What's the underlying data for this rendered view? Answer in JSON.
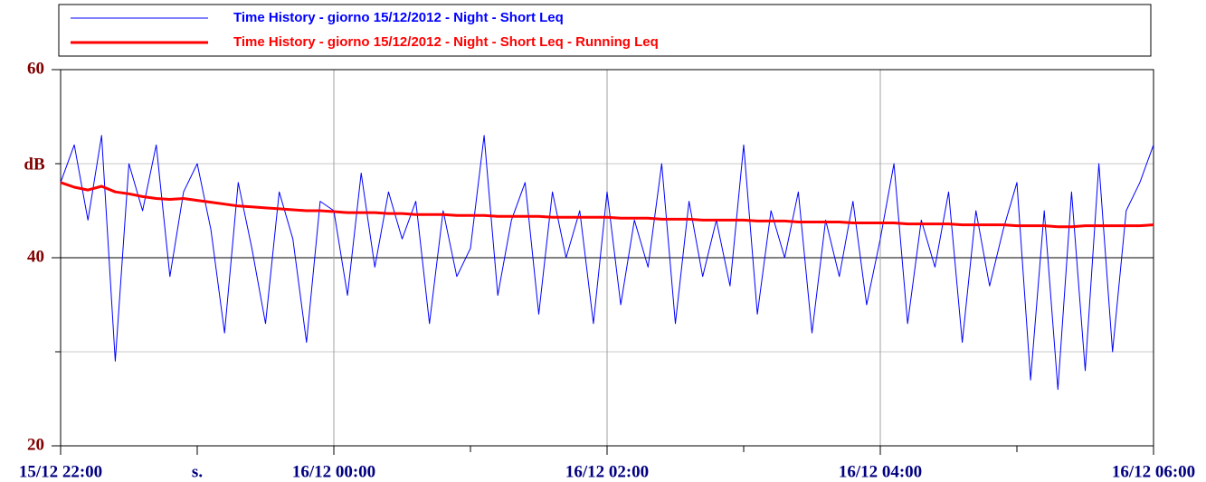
{
  "chart_data": {
    "type": "line",
    "x": [
      "15/12 22:00",
      "15/12 22:06",
      "15/12 22:12",
      "15/12 22:18",
      "15/12 22:24",
      "15/12 22:30",
      "15/12 22:36",
      "15/12 22:42",
      "15/12 22:48",
      "15/12 22:54",
      "15/12 23:00",
      "15/12 23:06",
      "15/12 23:12",
      "15/12 23:18",
      "15/12 23:24",
      "15/12 23:30",
      "15/12 23:36",
      "15/12 23:42",
      "15/12 23:48",
      "15/12 23:54",
      "16/12 00:00",
      "16/12 00:06",
      "16/12 00:12",
      "16/12 00:18",
      "16/12 00:24",
      "16/12 00:30",
      "16/12 00:36",
      "16/12 00:42",
      "16/12 00:48",
      "16/12 00:54",
      "16/12 01:00",
      "16/12 01:06",
      "16/12 01:12",
      "16/12 01:18",
      "16/12 01:24",
      "16/12 01:30",
      "16/12 01:36",
      "16/12 01:42",
      "16/12 01:48",
      "16/12 01:54",
      "16/12 02:00",
      "16/12 02:06",
      "16/12 02:12",
      "16/12 02:18",
      "16/12 02:24",
      "16/12 02:30",
      "16/12 02:36",
      "16/12 02:42",
      "16/12 02:48",
      "16/12 02:54",
      "16/12 03:00",
      "16/12 03:06",
      "16/12 03:12",
      "16/12 03:18",
      "16/12 03:24",
      "16/12 03:30",
      "16/12 03:36",
      "16/12 03:42",
      "16/12 03:48",
      "16/12 03:54",
      "16/12 04:00",
      "16/12 04:06",
      "16/12 04:12",
      "16/12 04:18",
      "16/12 04:24",
      "16/12 04:30",
      "16/12 04:36",
      "16/12 04:42",
      "16/12 04:48",
      "16/12 04:54",
      "16/12 05:00",
      "16/12 05:06",
      "16/12 05:12",
      "16/12 05:18",
      "16/12 05:24",
      "16/12 05:30",
      "16/12 05:36",
      "16/12 05:42",
      "16/12 05:48",
      "16/12 05:54",
      "16/12 06:00"
    ],
    "series": [
      {
        "name": "Time History - giorno 15/12/2012 - Night - Short Leq",
        "color": "#0000ff",
        "values": [
          48,
          52,
          44,
          53,
          29,
          50,
          45,
          52,
          38,
          47,
          50,
          43,
          32,
          48,
          41,
          33,
          47,
          42,
          31,
          46,
          45,
          36,
          49,
          39,
          47,
          42,
          46,
          33,
          45,
          38,
          41,
          53,
          36,
          44,
          48,
          34,
          47,
          40,
          45,
          33,
          47,
          35,
          44,
          39,
          50,
          33,
          46,
          38,
          44,
          37,
          52,
          34,
          45,
          40,
          47,
          32,
          44,
          38,
          46,
          35,
          42,
          50,
          33,
          44,
          39,
          47,
          31,
          45,
          37,
          43,
          48,
          27,
          45,
          26,
          47,
          28,
          50,
          30,
          45,
          48,
          52
        ]
      },
      {
        "name": "Time History - giorno 15/12/2012 - Night - Short Leq - Running Leq",
        "color": "#ff0000",
        "values": [
          48,
          47.5,
          47.2,
          47.6,
          47.0,
          46.8,
          46.5,
          46.3,
          46.2,
          46.3,
          46.1,
          45.9,
          45.7,
          45.5,
          45.4,
          45.3,
          45.2,
          45.1,
          45.0,
          45.0,
          44.9,
          44.8,
          44.8,
          44.8,
          44.7,
          44.7,
          44.6,
          44.6,
          44.6,
          44.5,
          44.5,
          44.5,
          44.4,
          44.4,
          44.4,
          44.4,
          44.3,
          44.3,
          44.3,
          44.3,
          44.3,
          44.2,
          44.2,
          44.2,
          44.1,
          44.1,
          44.1,
          44.0,
          44.0,
          44.0,
          44.0,
          43.9,
          43.9,
          43.9,
          43.8,
          43.8,
          43.8,
          43.8,
          43.7,
          43.7,
          43.7,
          43.7,
          43.6,
          43.6,
          43.6,
          43.6,
          43.5,
          43.5,
          43.5,
          43.5,
          43.4,
          43.4,
          43.4,
          43.3,
          43.3,
          43.4,
          43.4,
          43.4,
          43.4,
          43.4,
          43.5
        ]
      }
    ],
    "ylabel": "dB",
    "ylim": [
      20,
      60
    ],
    "yticks": [
      20,
      40,
      60
    ],
    "minor_yticks": [
      30,
      50
    ],
    "xlim": [
      "15/12 22:00",
      "16/12 06:00"
    ],
    "xticks": [
      "15/12 22:00",
      {
        "value": "15/12 23:00",
        "label": "s."
      },
      "16/12 00:00",
      "16/12 02:00",
      "16/12 04:00",
      "16/12 06:00"
    ],
    "minor_xticks": [
      "16/12 01:00",
      "16/12 03:00",
      "16/12 05:00"
    ],
    "grid": true
  }
}
